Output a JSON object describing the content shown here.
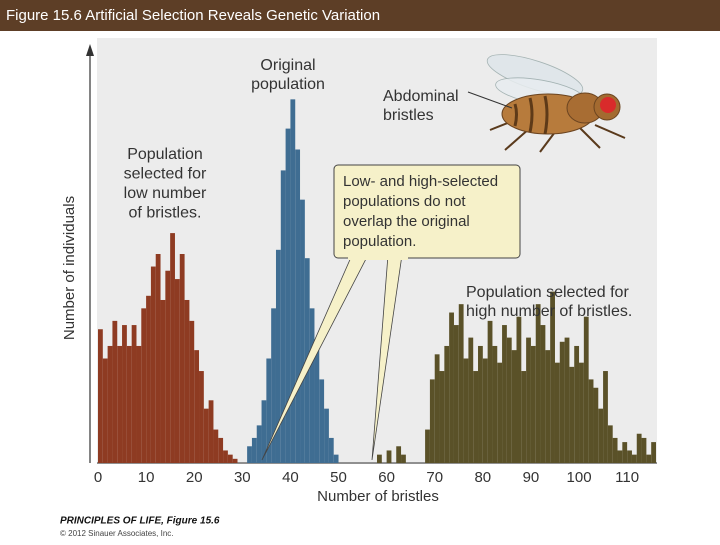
{
  "header": {
    "title": "Figure 15.6  Artificial Selection Reveals Genetic Variation"
  },
  "chart_data": {
    "type": "histogram",
    "xlabel": "Number of bristles",
    "ylabel": "Number of individuals",
    "xlim": [
      0,
      116
    ],
    "ylim": [
      0,
      100
    ],
    "xticks": [
      0,
      10,
      20,
      30,
      40,
      50,
      60,
      70,
      80,
      90,
      100,
      110
    ],
    "grid": false,
    "series": [
      {
        "color": "#8e3b22",
        "bins": [
          0,
          1,
          2,
          3,
          4,
          5,
          6,
          7,
          8,
          9,
          10,
          11,
          12,
          13,
          14,
          15,
          16,
          17,
          18,
          19,
          20,
          21,
          22,
          23,
          24,
          25,
          26,
          27,
          28,
          29
        ],
        "values": [
          32,
          25,
          28,
          34,
          28,
          33,
          28,
          33,
          28,
          37,
          40,
          47,
          50,
          39,
          46,
          55,
          44,
          50,
          39,
          34,
          27,
          22,
          13,
          15,
          8,
          6,
          3,
          2,
          1
        ]
      },
      {
        "color": "#3f6d92",
        "bins": [
          31,
          32,
          33,
          34,
          35,
          36,
          37,
          38,
          39,
          40,
          41,
          42,
          43,
          44,
          45,
          46,
          47,
          48,
          49,
          50
        ],
        "values": [
          4,
          6,
          9,
          15,
          25,
          37,
          51,
          70,
          80,
          87,
          75,
          63,
          49,
          37,
          29,
          20,
          13,
          6,
          2
        ]
      },
      {
        "color": "#5a5128",
        "bins": [
          58,
          59,
          60,
          61,
          62,
          63,
          64,
          65,
          66,
          67,
          68,
          69,
          70,
          71,
          72,
          73,
          74,
          75,
          76,
          77,
          78,
          79,
          80,
          81,
          82,
          83,
          84,
          85,
          86,
          87,
          88,
          89,
          90,
          91,
          92,
          93,
          94,
          95,
          96,
          97,
          98,
          99,
          100,
          101,
          102,
          103,
          104,
          105,
          106,
          107,
          108,
          109,
          110,
          111,
          112,
          113,
          114,
          115,
          116
        ],
        "values": [
          2,
          0,
          3,
          0,
          4,
          2,
          0,
          0,
          0,
          0,
          8,
          20,
          26,
          22,
          28,
          36,
          33,
          38,
          25,
          30,
          22,
          28,
          25,
          34,
          28,
          24,
          33,
          30,
          27,
          35,
          22,
          30,
          28,
          38,
          33,
          27,
          41,
          24,
          29,
          30,
          23,
          28,
          24,
          35,
          20,
          18,
          13,
          22,
          9,
          6,
          3,
          5,
          3,
          2,
          7,
          6,
          2,
          5
        ]
      }
    ],
    "annotations": [
      {
        "lines": [
          "Original",
          "population"
        ]
      },
      {
        "lines": [
          "Abdominal",
          "bristles"
        ]
      },
      {
        "lines": [
          "Population",
          "selected for",
          "low number",
          "of bristles."
        ]
      },
      {
        "lines": [
          "Low- and high-selected",
          "populations do not",
          "overlap the original",
          "population."
        ]
      },
      {
        "lines": [
          "Population selected for",
          "high number of bristles."
        ]
      }
    ]
  },
  "footer": {
    "source": "PRINCIPLES OF LIFE, Figure 15.6",
    "copyright": "© 2012 Sinauer Associates, Inc."
  }
}
